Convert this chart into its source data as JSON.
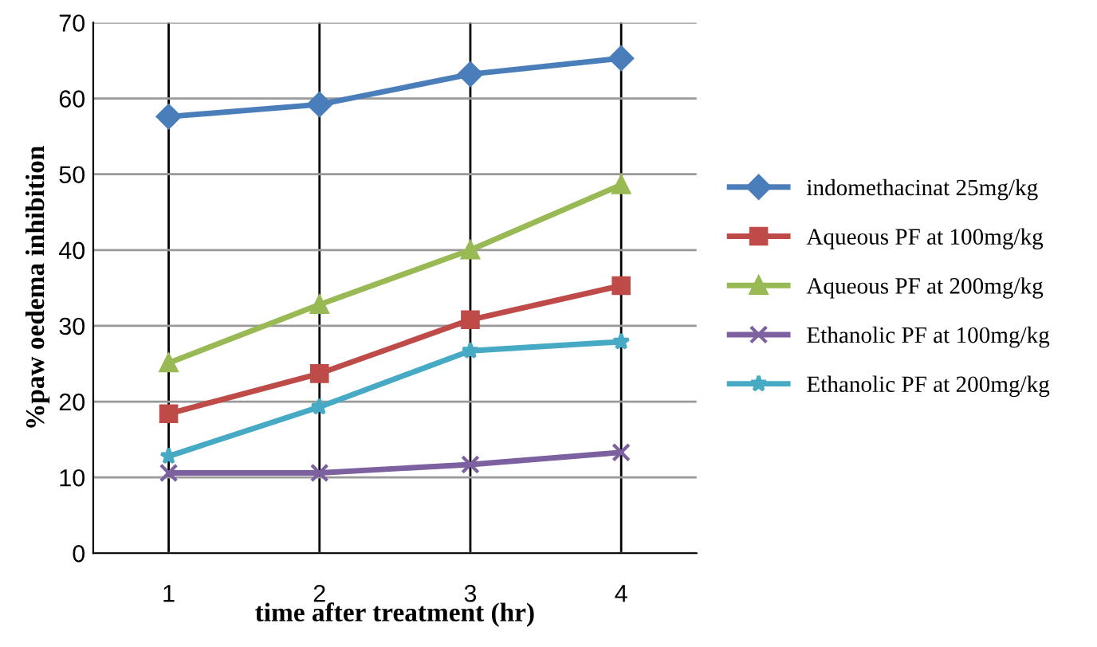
{
  "chart_data": {
    "type": "line",
    "xlabel": "time after treatment (hr)",
    "ylabel": "%paw oedema inhibition",
    "categories": [
      "1",
      "2",
      "3",
      "4"
    ],
    "series": [
      {
        "name": "indomethacinat 25mg/kg",
        "color": "#4a7ebb",
        "marker": "diamond",
        "values": [
          57.6,
          59.2,
          63.2,
          65.3
        ]
      },
      {
        "name": "Aqueous PF at 100mg/kg",
        "color": "#be4b48",
        "marker": "square",
        "values": [
          18.4,
          23.7,
          30.8,
          35.3
        ]
      },
      {
        "name": "Aqueous PF at 200mg/kg",
        "color": "#98b954",
        "marker": "triangle",
        "values": [
          25.1,
          32.8,
          40.0,
          48.6
        ]
      },
      {
        "name": "Ethanolic PF at 100mg/kg",
        "color": "#7d60a0",
        "marker": "cross",
        "values": [
          10.6,
          10.6,
          11.7,
          13.3
        ]
      },
      {
        "name": "Ethanolic PF at 200mg/kg",
        "color": "#46aac5",
        "marker": "star",
        "values": [
          12.8,
          19.3,
          26.7,
          27.9
        ]
      }
    ],
    "ylim": [
      0,
      70
    ],
    "yticks": [
      0,
      10,
      20,
      30,
      40,
      50,
      60,
      70
    ],
    "grid": true,
    "legend": "right",
    "line_style": "solid"
  }
}
